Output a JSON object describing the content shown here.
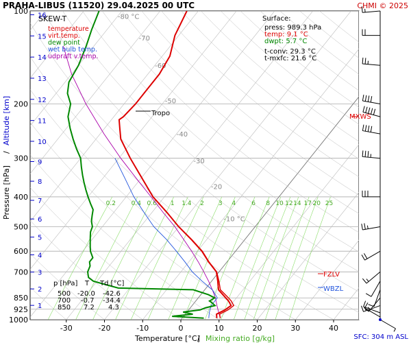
{
  "header": {
    "title": "PRAHA-LIBUS (11520)    29.04.2025 00 UTC",
    "credit": "CHMI © 2025"
  },
  "chart_data": {
    "type": "line",
    "chart_kind": "skew-T log-p diagram",
    "diagram_label": "SKEW-T",
    "ylabel_pressure": "Pressure [hPa]",
    "ylabel_altitude": "Altitude [km]",
    "ylabel_sep": "/",
    "xlabel_temperature": "Temperature [°C]",
    "xlabel_sep": "/",
    "xlabel_mixing": "Mixing ratio [g/kg]",
    "y_scale": "log",
    "ylim": [
      1000,
      100
    ],
    "xlim": [
      -35,
      45
    ],
    "pressure_ticks": [
      100,
      200,
      300,
      400,
      500,
      600,
      700,
      850,
      925,
      1000
    ],
    "pressure_tick_labels": [
      "100",
      "200",
      "300",
      "400",
      "500",
      "600",
      "700",
      "850",
      "925",
      "1000"
    ],
    "altitude_ticks_km": [
      "1",
      "2",
      "3",
      "4",
      "5",
      "6",
      "7",
      "8",
      "9",
      "10",
      "11",
      "12",
      "13",
      "14",
      "15",
      "16"
    ],
    "temperature_ticks": [
      "-30",
      "-20",
      "-10",
      "0",
      "10",
      "20",
      "30",
      "40"
    ],
    "isotherm_labels": [
      "-80 °C",
      "-70",
      "-60",
      "-50",
      "-40",
      "-30",
      "-20",
      "-10 °C"
    ],
    "mixing_ratio_labels": [
      "0.2",
      "0.4",
      "0.6",
      "1",
      "1.4",
      "2",
      "3",
      "4",
      "6",
      "8",
      "10",
      "12",
      "14",
      "17",
      "20",
      "25"
    ],
    "legend": [
      {
        "label": "temperature",
        "color": "#dd0000"
      },
      {
        "label": "virt.temp.",
        "color": "#dd0000"
      },
      {
        "label": "dew point",
        "color": "#008800"
      },
      {
        "label": "wet bulb temp.",
        "color": "#2255dd"
      },
      {
        "label": "udpraft v.temp.",
        "color": "#aa00aa"
      }
    ],
    "surface_box": {
      "heading": "Surface:",
      "press": "press: 989.3 hPa",
      "temp": "temp: 9.1 °C",
      "dwpt": "dwpt: 5.7 °C",
      "tconv": "t-conv: 29.3 °C",
      "tmxfc": "t-mxfc: 21.6 °C"
    },
    "level_table": {
      "header": [
        "p [hPa]",
        "T",
        "Td [°C]"
      ],
      "rows": [
        [
          "500",
          "-20.0",
          "-42.6"
        ],
        [
          "700",
          "-0.7",
          "-34.4"
        ],
        [
          "850",
          "7.2",
          "4.3"
        ]
      ]
    },
    "annotations": {
      "tropo": "Tropo",
      "mxws": "MXWS",
      "fzlv": "FZLV",
      "wbzl": "WBZL",
      "sfc": "SFC: 304 m ASL"
    },
    "series": [
      {
        "name": "temperature",
        "color": "#dd0000",
        "points": [
          [
            989,
            9.1
          ],
          [
            960,
            8.2
          ],
          [
            930,
            9.5
          ],
          [
            900,
            10.2
          ],
          [
            870,
            8.6
          ],
          [
            850,
            7.2
          ],
          [
            800,
            3.6
          ],
          [
            750,
            1.6
          ],
          [
            700,
            -0.7
          ],
          [
            650,
            -4.8
          ],
          [
            600,
            -8.8
          ],
          [
            550,
            -14
          ],
          [
            500,
            -20
          ],
          [
            450,
            -26
          ],
          [
            400,
            -33
          ],
          [
            350,
            -39.5
          ],
          [
            300,
            -47
          ],
          [
            260,
            -53.5
          ],
          [
            240,
            -56
          ],
          [
            225,
            -58
          ],
          [
            220,
            -57.5
          ],
          [
            200,
            -57
          ],
          [
            180,
            -57
          ],
          [
            160,
            -57
          ],
          [
            140,
            -58
          ],
          [
            120,
            -61
          ],
          [
            100,
            -63
          ]
        ]
      },
      {
        "name": "virt.temp.",
        "color": "#dd0000",
        "points": [
          [
            989,
            10
          ],
          [
            960,
            9
          ],
          [
            930,
            10.3
          ],
          [
            900,
            10.9
          ],
          [
            870,
            9.3
          ],
          [
            850,
            7.9
          ],
          [
            800,
            4.1
          ],
          [
            750,
            1.9
          ],
          [
            700,
            -0.6
          ],
          [
            650,
            -4.7
          ],
          [
            600,
            -8.7
          ],
          [
            550,
            -13.9
          ],
          [
            500,
            -20
          ],
          [
            450,
            -26
          ],
          [
            400,
            -33
          ],
          [
            350,
            -39.5
          ],
          [
            300,
            -47
          ]
        ]
      },
      {
        "name": "dew point",
        "color": "#008800",
        "points": [
          [
            989,
            5.7
          ],
          [
            975,
            -3
          ],
          [
            960,
            2
          ],
          [
            945,
            -1
          ],
          [
            930,
            3
          ],
          [
            915,
            4
          ],
          [
            900,
            6
          ],
          [
            880,
            4.5
          ],
          [
            870,
            3.6
          ],
          [
            850,
            4.3
          ],
          [
            830,
            2
          ],
          [
            800,
            -3
          ],
          [
            790,
            -23
          ],
          [
            770,
            -27
          ],
          [
            750,
            -31
          ],
          [
            730,
            -33
          ],
          [
            700,
            -34.4
          ],
          [
            670,
            -35
          ],
          [
            650,
            -36
          ],
          [
            630,
            -36
          ],
          [
            600,
            -38
          ],
          [
            580,
            -39
          ],
          [
            560,
            -40
          ],
          [
            540,
            -41
          ],
          [
            520,
            -42
          ],
          [
            500,
            -42.6
          ],
          [
            480,
            -44
          ],
          [
            460,
            -45
          ],
          [
            440,
            -46
          ],
          [
            420,
            -48
          ],
          [
            400,
            -50
          ],
          [
            380,
            -52
          ],
          [
            360,
            -54
          ],
          [
            340,
            -56
          ],
          [
            320,
            -58
          ],
          [
            300,
            -60
          ],
          [
            280,
            -63
          ],
          [
            260,
            -66
          ],
          [
            240,
            -69
          ],
          [
            220,
            -72
          ],
          [
            200,
            -74
          ],
          [
            185,
            -77
          ],
          [
            170,
            -79
          ],
          [
            150,
            -80
          ],
          [
            130,
            -82
          ],
          [
            115,
            -84
          ],
          [
            100,
            -86
          ]
        ]
      },
      {
        "name": "wet bulb temp.",
        "color": "#2255dd",
        "points": [
          [
            989,
            7
          ],
          [
            950,
            6
          ],
          [
            900,
            5
          ],
          [
            850,
            5
          ],
          [
            800,
            2
          ],
          [
            750,
            -2.5
          ],
          [
            700,
            -7
          ],
          [
            650,
            -11
          ],
          [
            600,
            -15.5
          ],
          [
            550,
            -20.5
          ],
          [
            500,
            -26.5
          ],
          [
            450,
            -32
          ],
          [
            400,
            -38
          ],
          [
            350,
            -44
          ],
          [
            300,
            -51
          ]
        ]
      },
      {
        "name": "udpraft v.temp.",
        "color": "#aa00aa",
        "points": [
          [
            989,
            10
          ],
          [
            950,
            8.5
          ],
          [
            900,
            6.5
          ],
          [
            850,
            4.5
          ],
          [
            800,
            2
          ],
          [
            750,
            -0.8
          ],
          [
            700,
            -4
          ],
          [
            650,
            -7.5
          ],
          [
            600,
            -11.5
          ],
          [
            550,
            -16
          ],
          [
            500,
            -21
          ],
          [
            450,
            -27
          ],
          [
            400,
            -33.5
          ],
          [
            350,
            -41
          ],
          [
            300,
            -49.5
          ],
          [
            250,
            -59
          ],
          [
            200,
            -70
          ],
          [
            160,
            -80
          ],
          [
            130,
            -88
          ]
        ]
      }
    ],
    "wind_barbs": [
      {
        "p": 1000,
        "speed_kt": 5,
        "dir_deg": 120
      },
      {
        "p": 980,
        "speed_kt": 10,
        "dir_deg": 300
      },
      {
        "p": 950,
        "speed_kt": 10,
        "dir_deg": 290
      },
      {
        "p": 900,
        "speed_kt": 15,
        "dir_deg": 250
      },
      {
        "p": 850,
        "speed_kt": 15,
        "dir_deg": 220
      },
      {
        "p": 800,
        "speed_kt": 10,
        "dir_deg": 200
      },
      {
        "p": 750,
        "speed_kt": 10,
        "dir_deg": 210
      },
      {
        "p": 700,
        "speed_kt": 15,
        "dir_deg": 230
      },
      {
        "p": 600,
        "speed_kt": 20,
        "dir_deg": 240
      },
      {
        "p": 500,
        "speed_kt": 25,
        "dir_deg": 260
      },
      {
        "p": 400,
        "speed_kt": 30,
        "dir_deg": 270
      },
      {
        "p": 300,
        "speed_kt": 35,
        "dir_deg": 275
      },
      {
        "p": 250,
        "speed_kt": 40,
        "dir_deg": 280
      },
      {
        "p": 220,
        "speed_kt": 50,
        "dir_deg": 285
      },
      {
        "p": 200,
        "speed_kt": 40,
        "dir_deg": 280
      },
      {
        "p": 150,
        "speed_kt": 25,
        "dir_deg": 275
      },
      {
        "p": 120,
        "speed_kt": 20,
        "dir_deg": 270
      },
      {
        "p": 100,
        "speed_kt": 15,
        "dir_deg": 265
      }
    ],
    "colors": {
      "temperature": "#dd0000",
      "dew_point": "#008800",
      "wet_bulb": "#2255dd",
      "updraft": "#aa00aa",
      "mixing_ratio": "#88dd66",
      "isotherm": "#999999",
      "dry_adiabat": "#aaaaaa",
      "altitude_axis": "#0000cc",
      "credit": "#cc0000"
    }
  }
}
